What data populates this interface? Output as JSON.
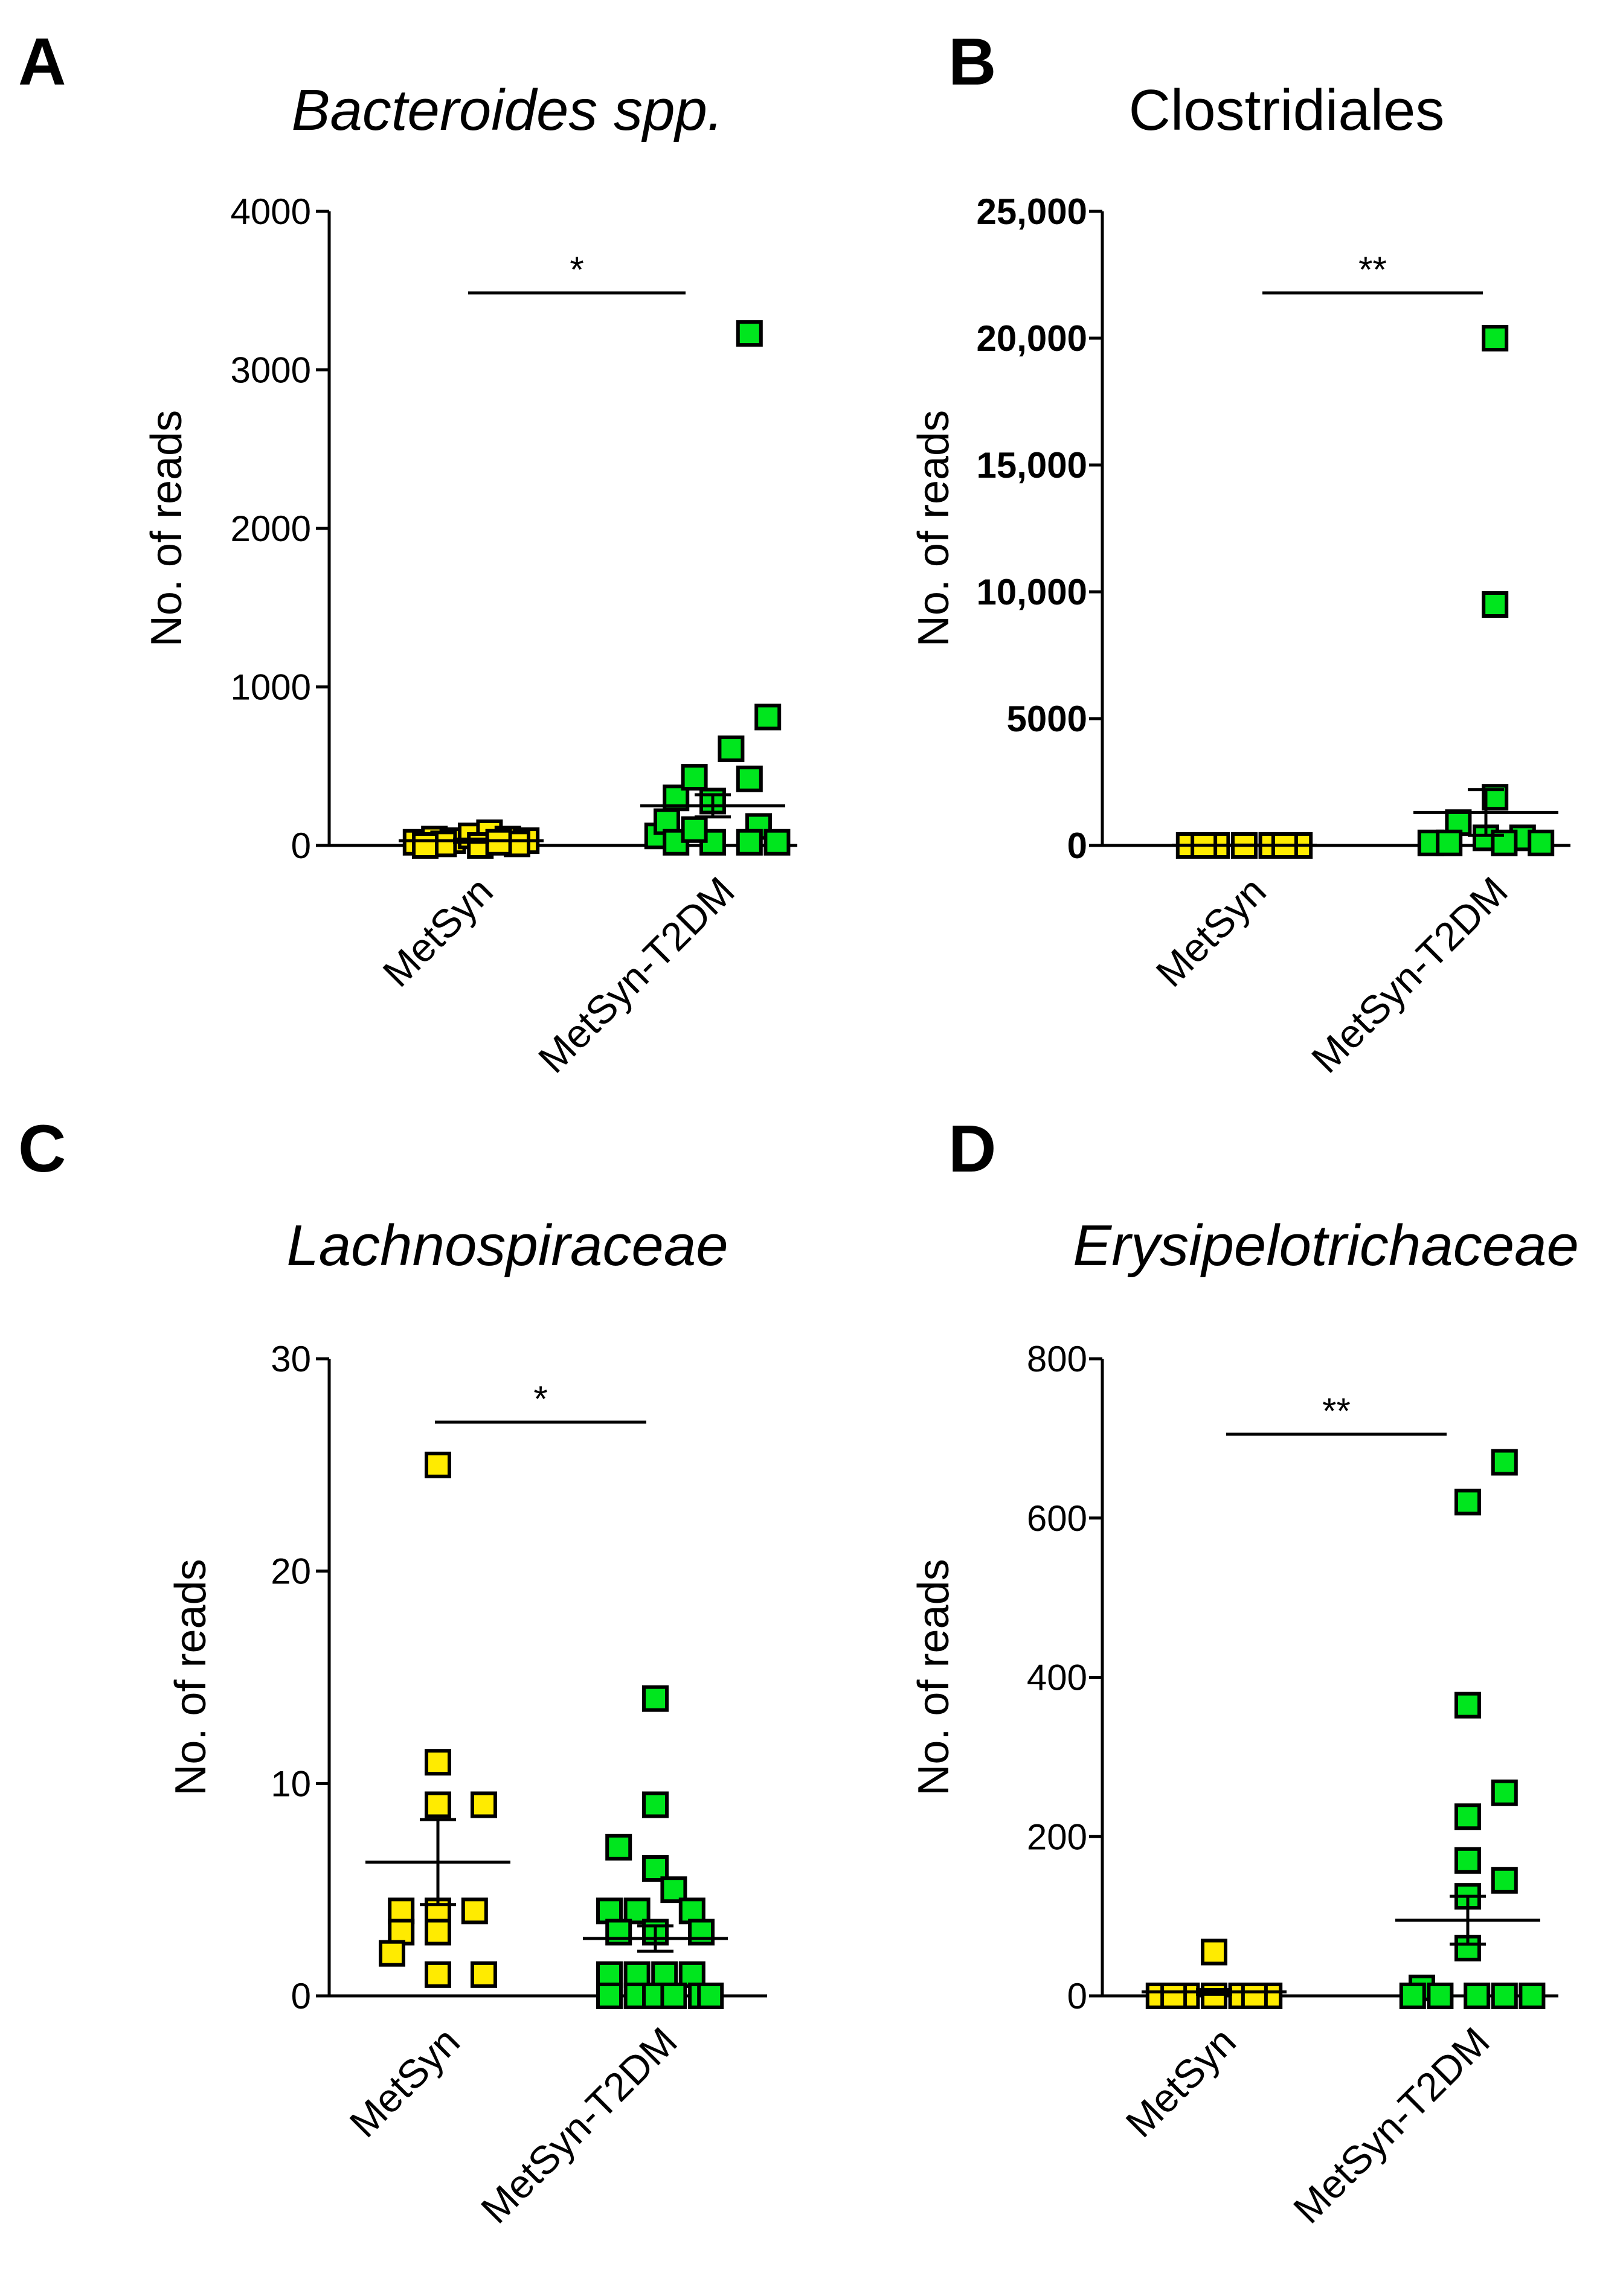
{
  "colors": {
    "metsyn": "#ffeb00",
    "metsyn_t2dm": "#00e61e",
    "axis": "#000000"
  },
  "chart_data": [
    {
      "panel": "A",
      "type": "scatter",
      "title": "Bacteroides spp.",
      "title_italic": true,
      "ylabel": "No. of reads",
      "xlabel": "",
      "categories": [
        "MetSyn",
        "MetSyn-T2DM"
      ],
      "ylim": [
        0,
        4000
      ],
      "yticks": [
        0,
        1000,
        2000,
        3000,
        4000
      ],
      "ytick_labels": [
        "0",
        "1000",
        "2000",
        "3000",
        "4000"
      ],
      "ytick_bold": false,
      "significance": "*",
      "series": [
        {
          "name": "MetSyn",
          "mean": 30,
          "sem": 10,
          "points": [
            [
              -0.3,
              20
            ],
            [
              -0.2,
              40
            ],
            [
              -0.1,
              30
            ],
            [
              0.0,
              60
            ],
            [
              0.1,
              80
            ],
            [
              0.2,
              40
            ],
            [
              0.3,
              30
            ],
            [
              -0.15,
              10
            ],
            [
              0.05,
              0
            ],
            [
              0.25,
              10
            ],
            [
              0.15,
              20
            ],
            [
              -0.25,
              0
            ]
          ]
        },
        {
          "name": "MetSyn-T2DM",
          "mean": 250,
          "sem": 70,
          "points": [
            [
              -0.3,
              60
            ],
            [
              -0.2,
              300
            ],
            [
              -0.1,
              430
            ],
            [
              0.0,
              280
            ],
            [
              0.1,
              610
            ],
            [
              0.2,
              420
            ],
            [
              0.3,
              810
            ],
            [
              0.25,
              120
            ],
            [
              -0.25,
              150
            ],
            [
              -0.2,
              20
            ],
            [
              0.0,
              20
            ],
            [
              0.2,
              20
            ],
            [
              0.35,
              20
            ],
            [
              -0.1,
              100
            ],
            [
              0.2,
              3230
            ]
          ]
        }
      ]
    },
    {
      "panel": "B",
      "type": "scatter",
      "title": "Clostridiales",
      "title_italic": false,
      "ylabel": "No. of reads",
      "xlabel": "",
      "categories": [
        "MetSyn",
        "MetSyn-T2DM"
      ],
      "ylim": [
        0,
        25000
      ],
      "yticks": [
        0,
        5000,
        10000,
        15000,
        20000,
        25000
      ],
      "ytick_labels": [
        "0",
        "5000",
        "10,000",
        "15,000",
        "20,000",
        "25,000"
      ],
      "ytick_bold": true,
      "significance": "**",
      "series": [
        {
          "name": "MetSyn",
          "mean": 10,
          "sem": 5,
          "points": [
            [
              -0.3,
              0
            ],
            [
              -0.15,
              0
            ],
            [
              0.0,
              0
            ],
            [
              0.15,
              0
            ],
            [
              0.3,
              0
            ],
            [
              -0.22,
              0
            ],
            [
              0.22,
              0
            ]
          ]
        },
        {
          "name": "MetSyn-T2DM",
          "mean": 1300,
          "sem": 900,
          "points": [
            [
              -0.3,
              100
            ],
            [
              -0.15,
              900
            ],
            [
              0.0,
              300
            ],
            [
              0.05,
              1900
            ],
            [
              0.05,
              9500
            ],
            [
              0.05,
              20000
            ],
            [
              0.2,
              300
            ],
            [
              0.3,
              100
            ],
            [
              -0.2,
              100
            ],
            [
              0.1,
              100
            ]
          ]
        }
      ]
    },
    {
      "panel": "C",
      "type": "scatter",
      "title": "Lachnospiraceae",
      "title_italic": true,
      "ylabel": "No. of reads",
      "xlabel": "",
      "categories": [
        "MetSyn",
        "MetSyn-T2DM"
      ],
      "ylim": [
        0,
        30
      ],
      "yticks": [
        0,
        10,
        20,
        30
      ],
      "ytick_labels": [
        "0",
        "10",
        "20",
        "30"
      ],
      "ytick_bold": false,
      "significance": "*",
      "series": [
        {
          "name": "MetSyn",
          "mean": 6.3,
          "sem": 2.0,
          "points": [
            [
              0.0,
              25
            ],
            [
              0.0,
              11
            ],
            [
              0.0,
              9
            ],
            [
              0.25,
              9
            ],
            [
              -0.2,
              4
            ],
            [
              0.0,
              4
            ],
            [
              0.2,
              4
            ],
            [
              -0.2,
              3
            ],
            [
              0.0,
              3
            ],
            [
              -0.25,
              2
            ],
            [
              0.0,
              1
            ],
            [
              0.25,
              1
            ]
          ]
        },
        {
          "name": "MetSyn-T2DM",
          "mean": 2.7,
          "sem": 0.6,
          "points": [
            [
              0.0,
              14
            ],
            [
              0.0,
              9
            ],
            [
              -0.2,
              7
            ],
            [
              0.0,
              6
            ],
            [
              0.1,
              5
            ],
            [
              -0.25,
              4
            ],
            [
              -0.1,
              4
            ],
            [
              0.2,
              4
            ],
            [
              -0.2,
              3
            ],
            [
              0.0,
              3
            ],
            [
              0.25,
              3
            ],
            [
              -0.25,
              1
            ],
            [
              -0.1,
              1
            ],
            [
              0.05,
              1
            ],
            [
              0.2,
              1
            ],
            [
              -0.25,
              0
            ],
            [
              -0.1,
              0
            ],
            [
              0.0,
              0
            ],
            [
              0.1,
              0
            ],
            [
              0.25,
              0
            ],
            [
              0.3,
              0
            ]
          ]
        }
      ]
    },
    {
      "panel": "D",
      "type": "scatter",
      "title": "Erysipelotrichaceae",
      "title_italic": true,
      "ylabel": "No. of reads",
      "xlabel": "",
      "categories": [
        "MetSyn",
        "MetSyn-T2DM"
      ],
      "ylim": [
        0,
        800
      ],
      "yticks": [
        0,
        200,
        400,
        600,
        800
      ],
      "ytick_labels": [
        "0",
        "200",
        "400",
        "600",
        "800"
      ],
      "ytick_bold": false,
      "significance": "**",
      "series": [
        {
          "name": "MetSyn",
          "mean": 5,
          "sem": 3,
          "points": [
            [
              0.0,
              55
            ],
            [
              -0.3,
              0
            ],
            [
              -0.15,
              0
            ],
            [
              0.0,
              0
            ],
            [
              0.15,
              0
            ],
            [
              0.3,
              0
            ],
            [
              -0.22,
              0
            ],
            [
              0.22,
              0
            ]
          ]
        },
        {
          "name": "MetSyn-T2DM",
          "mean": 95,
          "sem": 30,
          "points": [
            [
              0.0,
              620
            ],
            [
              0.2,
              670
            ],
            [
              0.0,
              365
            ],
            [
              0.0,
              225
            ],
            [
              0.2,
              255
            ],
            [
              0.0,
              170
            ],
            [
              0.2,
              145
            ],
            [
              0.0,
              125
            ],
            [
              0.0,
              60
            ],
            [
              -0.25,
              10
            ],
            [
              -0.3,
              0
            ],
            [
              -0.15,
              0
            ],
            [
              0.05,
              0
            ],
            [
              0.2,
              0
            ],
            [
              0.35,
              0
            ]
          ]
        }
      ]
    }
  ]
}
